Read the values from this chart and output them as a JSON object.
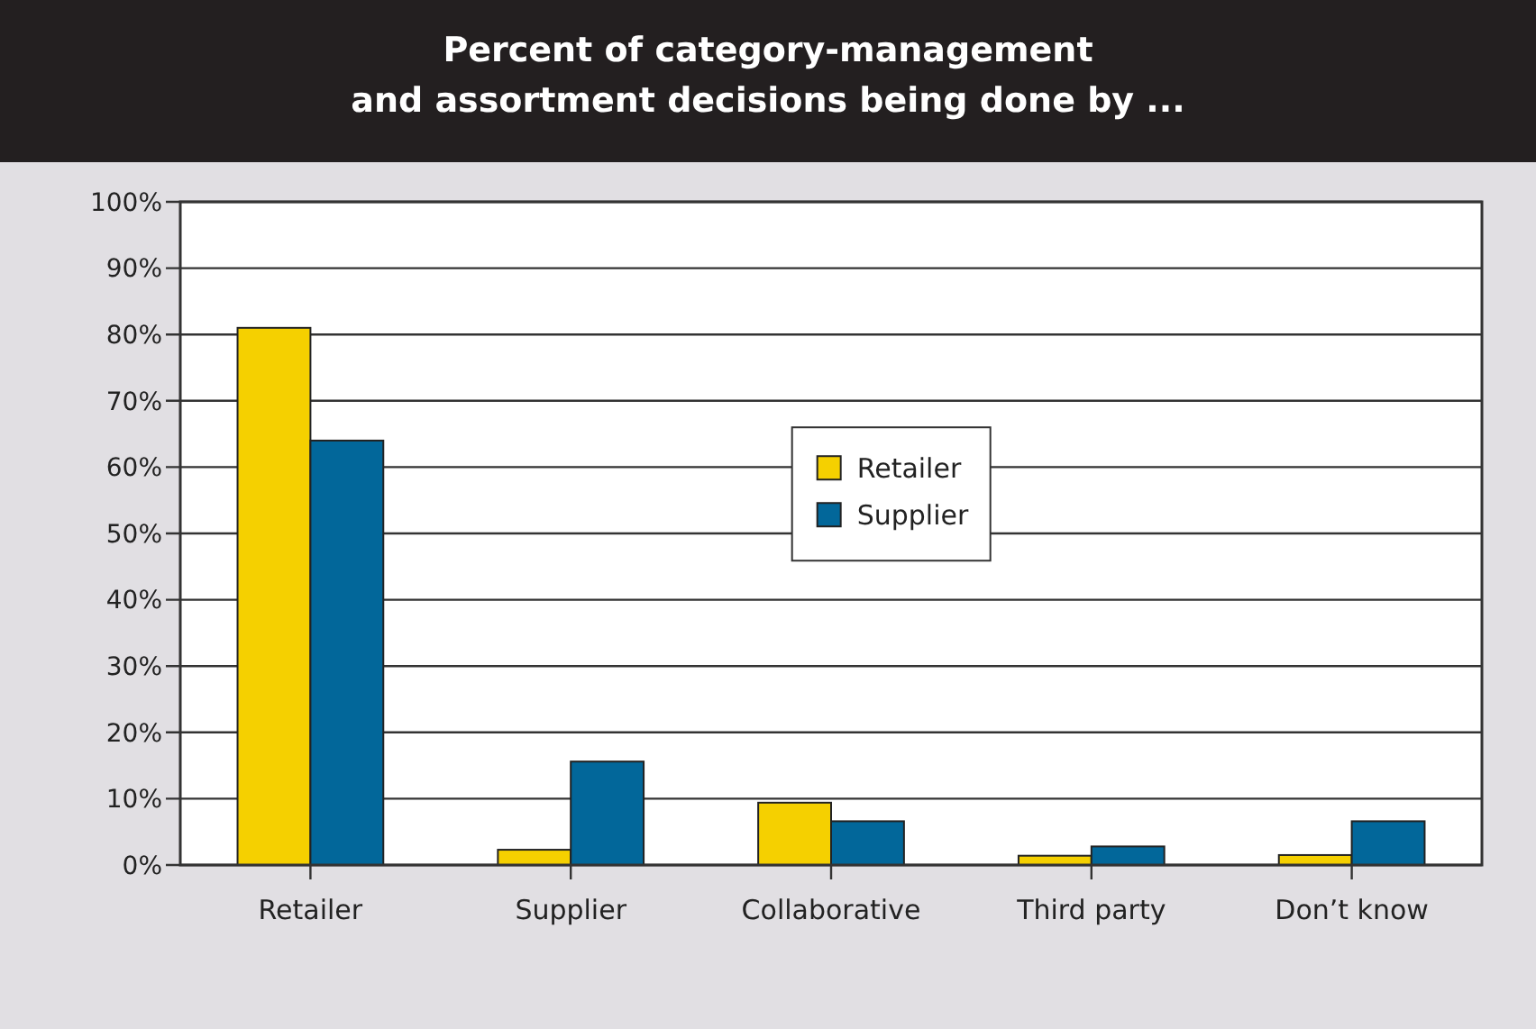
{
  "chart_data": {
    "type": "bar",
    "title": "Percent of category-management\nand assortment decisions being done by ...",
    "categories": [
      "Retailer",
      "Supplier",
      "Collaborative",
      "Third party",
      "Don’t know"
    ],
    "series": [
      {
        "name": "Retailer",
        "color": "#f5d000",
        "values": [
          81,
          2.3,
          9.4,
          1.4,
          1.5
        ]
      },
      {
        "name": "Supplier",
        "color": "#02679a",
        "values": [
          64,
          15.6,
          6.6,
          2.8,
          6.6
        ]
      }
    ],
    "ylim": [
      0,
      100
    ],
    "yticks": [
      {
        "value": 0,
        "label": "0%"
      },
      {
        "value": 10,
        "label": "10%"
      },
      {
        "value": 20,
        "label": "20%"
      },
      {
        "value": 30,
        "label": "30%"
      },
      {
        "value": 40,
        "label": "40%"
      },
      {
        "value": 50,
        "label": "50%"
      },
      {
        "value": 60,
        "label": "60%"
      },
      {
        "value": 70,
        "label": "70%"
      },
      {
        "value": 80,
        "label": "80%"
      },
      {
        "value": 90,
        "label": "90%"
      },
      {
        "value": 100,
        "label": "100%"
      }
    ],
    "grid": "y",
    "legend": "top"
  }
}
